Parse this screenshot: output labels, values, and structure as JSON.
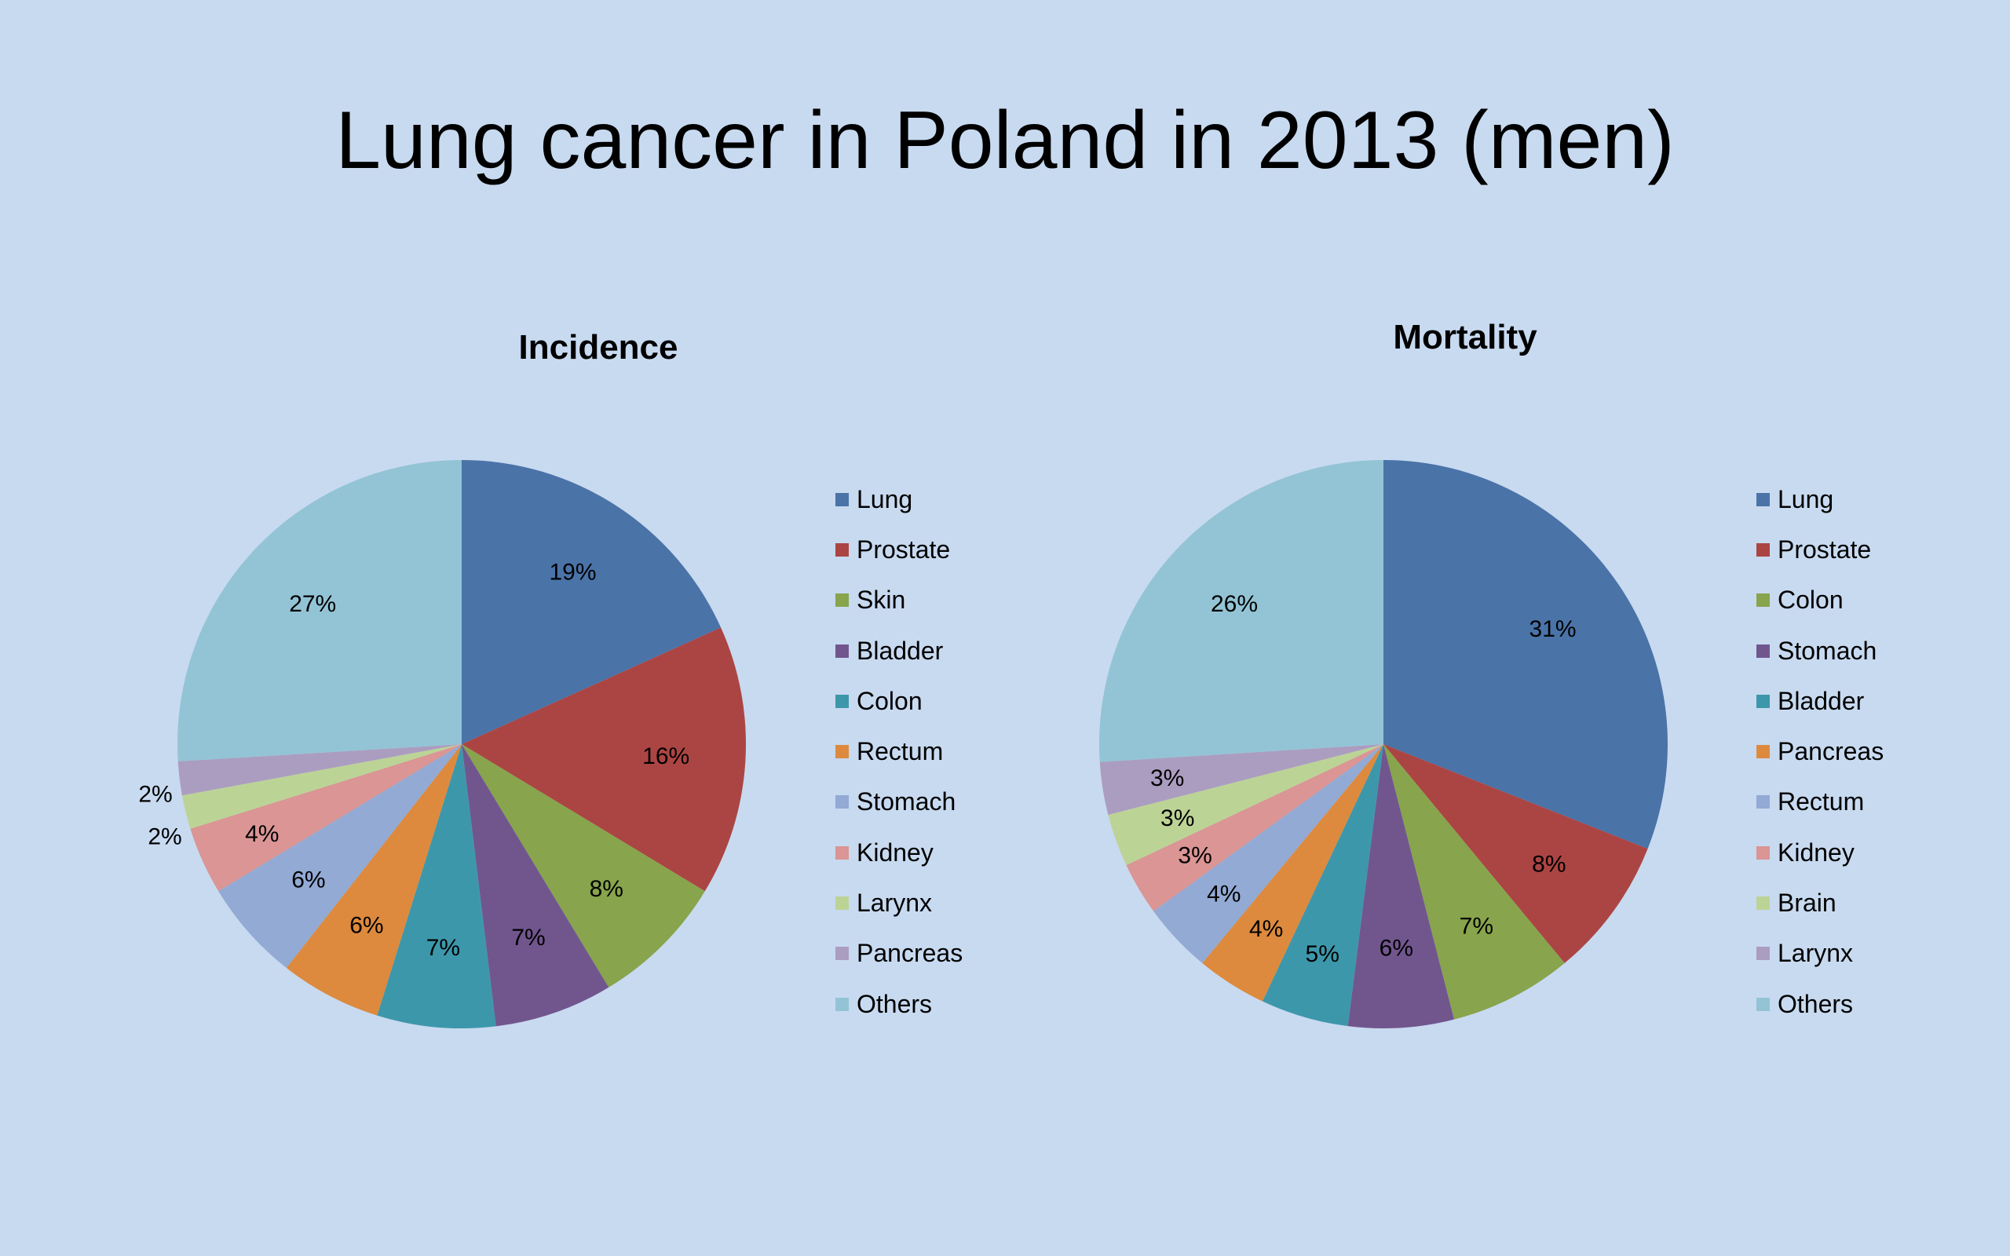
{
  "title": "Lung cancer in Poland in 2013 (men)",
  "colors": [
    "#4a73a8",
    "#ab4543",
    "#88a44c",
    "#71568e",
    "#3d97aa",
    "#dd8a3e",
    "#92aad4",
    "#da9594",
    "#bcd396",
    "#ab9dc0",
    "#93c4d5"
  ],
  "chart_data": [
    {
      "type": "pie",
      "title": "Incidence",
      "categories": [
        "Lung",
        "Prostate",
        "Skin",
        "Bladder",
        "Colon",
        "Rectum",
        "Stomach",
        "Kidney",
        "Larynx",
        "Pancreas",
        "Others"
      ],
      "values": [
        19,
        16,
        8,
        7,
        7,
        6,
        6,
        4,
        2,
        2,
        27
      ],
      "labels": [
        "19%",
        "16%",
        "8%",
        "7%",
        "7%",
        "6%",
        "6%",
        "4%",
        "2%",
        "2%",
        "27%"
      ],
      "legend": "right"
    },
    {
      "type": "pie",
      "title": "Mortality",
      "categories": [
        "Lung",
        "Prostate",
        "Colon",
        "Stomach",
        "Bladder",
        "Pancreas",
        "Rectum",
        "Kidney",
        "Brain",
        "Larynx",
        "Others"
      ],
      "values": [
        31,
        8,
        7,
        6,
        5,
        4,
        4,
        3,
        3,
        3,
        26
      ],
      "labels": [
        "31%",
        "8%",
        "7%",
        "6%",
        "5%",
        "4%",
        "4%",
        "3%",
        "3%",
        "3%",
        "26%"
      ],
      "legend": "right"
    }
  ]
}
